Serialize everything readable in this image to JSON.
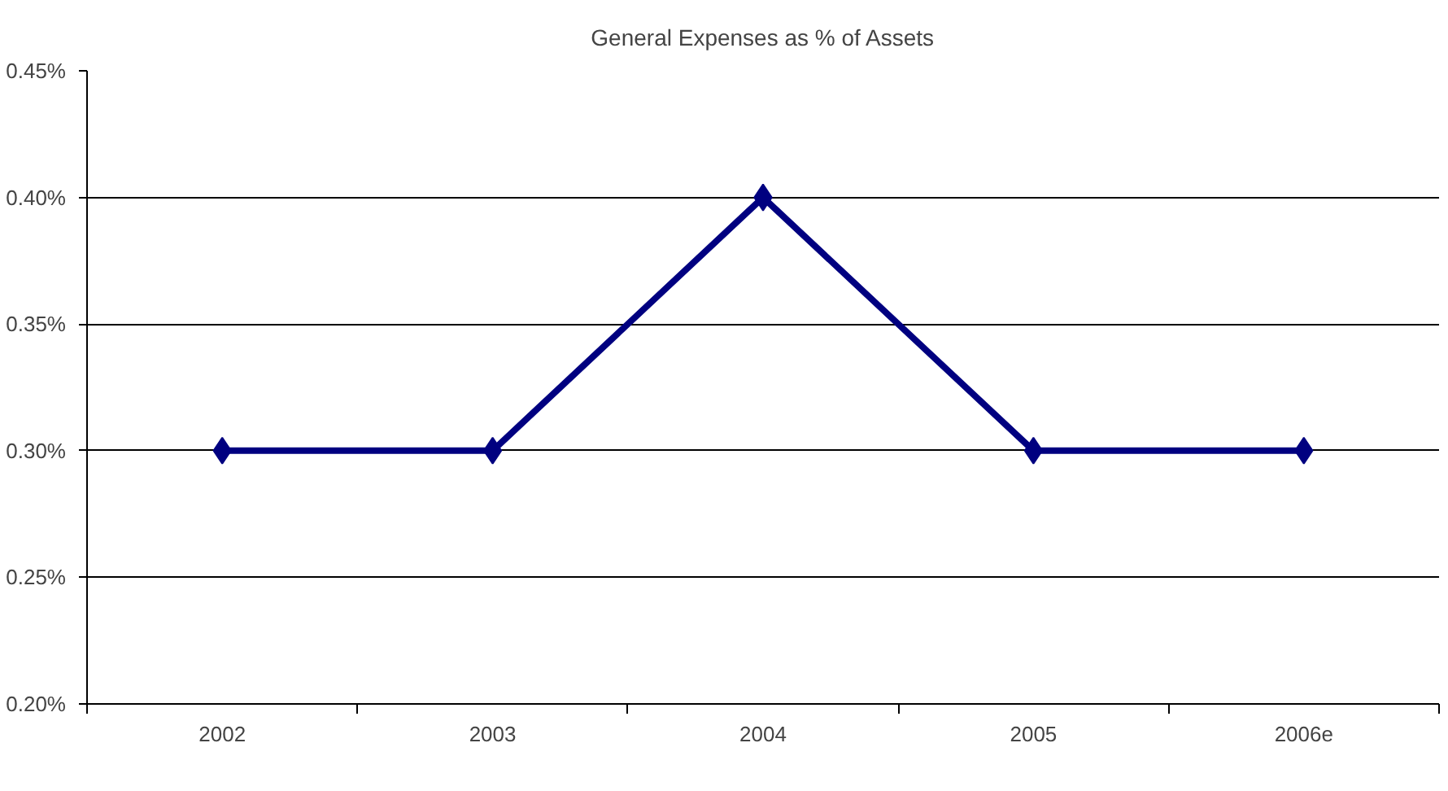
{
  "chart_data": {
    "type": "line",
    "title": "General Expenses as % of Assets",
    "categories": [
      "2002",
      "2003",
      "2004",
      "2005",
      "2006e"
    ],
    "series": [
      {
        "color": "#000080",
        "values": [
          0.3,
          0.3,
          0.4,
          0.3,
          0.3
        ]
      }
    ],
    "ylim": [
      0.2,
      0.45
    ],
    "yticks": [
      {
        "value": 0.2,
        "label": "0.20%"
      },
      {
        "value": 0.25,
        "label": "0.25%"
      },
      {
        "value": 0.3,
        "label": "0.30%"
      },
      {
        "value": 0.35,
        "label": "0.35%"
      },
      {
        "value": 0.4,
        "label": "0.40%"
      },
      {
        "value": 0.45,
        "label": "0.45%"
      }
    ],
    "grid": "y",
    "marker": "diamond",
    "line_style": "solid"
  }
}
